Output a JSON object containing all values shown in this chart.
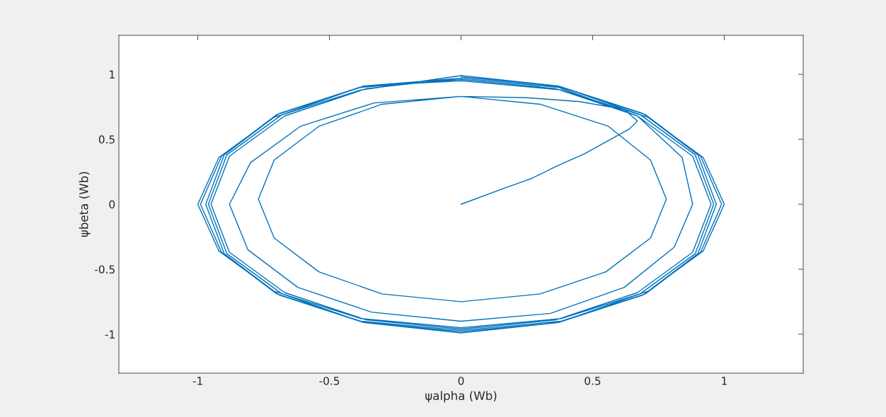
{
  "chart_data": {
    "type": "line",
    "xlabel": "ψalpha (Wb)",
    "ylabel": "ψbeta (Wb)",
    "xlim": [
      -1.3,
      1.3
    ],
    "ylim": [
      -1.3,
      1.3
    ],
    "xticks": [
      -1,
      -0.5,
      0,
      0.5,
      1
    ],
    "yticks": [
      -1,
      -0.5,
      0,
      0.5,
      1
    ],
    "grid": false,
    "marker": "none",
    "line_style": "solid",
    "series": [
      {
        "color": "#0072bd",
        "x": [
          0,
          0.16,
          0.27,
          0.36,
          0.47,
          0.56,
          0.64,
          0.67,
          0.62,
          0.45,
          0.25,
          0,
          -0.3,
          -0.54,
          -0.71,
          -0.77,
          -0.71,
          -0.54,
          -0.3,
          0,
          0.3,
          0.55,
          0.72,
          0.78,
          0.72,
          0.56,
          0.3,
          0,
          -0.33,
          -0.61,
          -0.8,
          -0.88,
          -0.81,
          -0.62,
          -0.34,
          0,
          0.34,
          0.62,
          0.81,
          0.88,
          0.84,
          0.67,
          0.37,
          0,
          -0.36,
          -0.67,
          -0.88,
          -0.95,
          -0.88,
          -0.67,
          -0.36,
          0,
          0.36,
          0.67,
          0.88,
          0.95,
          0.88,
          0.67,
          0.36,
          0,
          -0.38,
          -0.7,
          -0.91,
          -0.99,
          -0.91,
          -0.7,
          -0.38,
          0,
          0.38,
          0.7,
          0.91,
          0.99,
          0.91,
          0.7,
          0.38,
          0,
          -0.37,
          -0.69,
          -0.9,
          -0.97,
          -0.9,
          -0.69,
          -0.37,
          0,
          0.37,
          0.69,
          0.9,
          0.97,
          0.9,
          0.69,
          0.37,
          0,
          -0.38,
          -0.71,
          -0.92,
          -1,
          -0.92,
          -0.71,
          -0.38,
          0,
          0.38,
          0.71,
          0.92,
          1,
          0.92,
          0.71,
          0.38,
          0,
          -0.37,
          -0.68,
          -0.89,
          -0.96,
          -0.89,
          -0.68,
          -0.37,
          0,
          0.37,
          0.68,
          0.89,
          0.96,
          0.89,
          0.68,
          0.37,
          0
        ],
        "values": [
          0,
          0.12,
          0.2,
          0.29,
          0.39,
          0.49,
          0.58,
          0.64,
          0.73,
          0.79,
          0.82,
          0.83,
          0.77,
          0.6,
          0.34,
          0.04,
          -0.26,
          -0.52,
          -0.69,
          -0.75,
          -0.69,
          -0.52,
          -0.26,
          0.04,
          0.34,
          0.6,
          0.77,
          0.83,
          0.78,
          0.6,
          0.32,
          0,
          -0.35,
          -0.64,
          -0.83,
          -0.9,
          -0.84,
          -0.64,
          -0.33,
          0,
          0.36,
          0.68,
          0.9,
          0.97,
          0.89,
          0.68,
          0.37,
          0,
          -0.37,
          -0.68,
          -0.89,
          -0.96,
          -0.89,
          -0.68,
          -0.37,
          0,
          0.37,
          0.68,
          0.89,
          0.96,
          0.9,
          0.69,
          0.37,
          0,
          -0.37,
          -0.69,
          -0.9,
          -0.97,
          -0.9,
          -0.69,
          -0.37,
          0,
          0.37,
          0.69,
          0.9,
          0.97,
          0.91,
          0.7,
          0.38,
          0,
          -0.38,
          -0.7,
          -0.91,
          -0.99,
          -0.91,
          -0.7,
          -0.38,
          0,
          0.38,
          0.7,
          0.91,
          0.99,
          0.88,
          0.67,
          0.36,
          0,
          -0.36,
          -0.67,
          -0.88,
          -0.95,
          -0.88,
          -0.67,
          -0.36,
          0,
          0.36,
          0.67,
          0.88,
          0.95,
          0.91,
          0.69,
          0.38,
          0,
          -0.38,
          -0.69,
          -0.91,
          -0.98,
          -0.91,
          -0.69,
          -0.38,
          0,
          0.38,
          0.69,
          0.91,
          0.98
        ]
      }
    ]
  }
}
